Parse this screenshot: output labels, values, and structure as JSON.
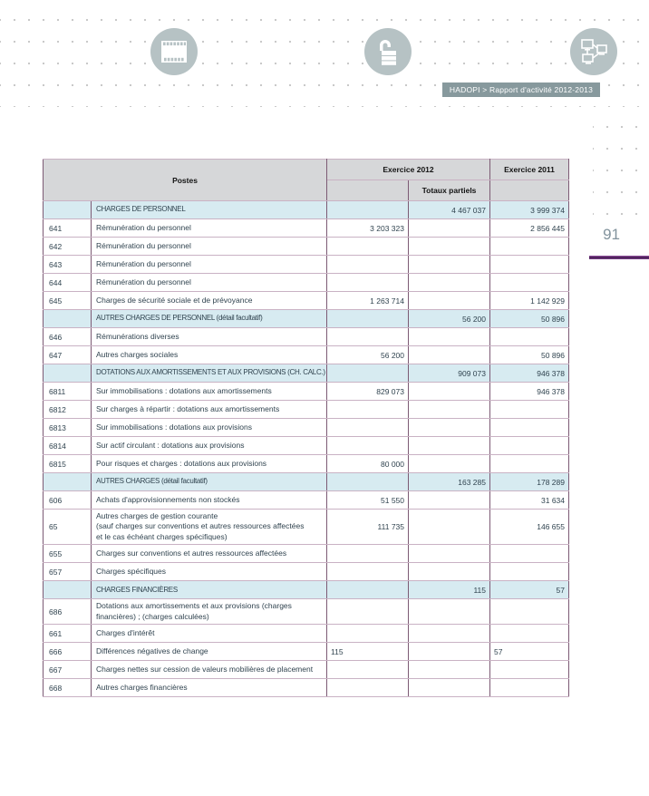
{
  "page": {
    "number": "91",
    "breadcrumb": "HADOPI > Rapport d'activité 2012-2013"
  },
  "icons": [
    "film-icon",
    "unlock-icon",
    "network-icon"
  ],
  "colors": {
    "accent_purple_rule": "#5a2366",
    "section_row_blue": "#d7ebf1",
    "header_gray": "#d6d7d9",
    "icon_circle_gray": "#b6c2c4",
    "breadcrumb_bg": "#87999d",
    "table_border_vertical": "#7c5a74",
    "table_border_horizontal": "#c9b2c4",
    "body_text": "#30434f",
    "page_number_gray": "#82939d"
  },
  "table": {
    "headers": {
      "postes": "Postes",
      "exercice2012": "Exercice 2012",
      "totaux_partiels": "Totaux partiels",
      "exercice2011": "Exercice 2011"
    },
    "rows": [
      {
        "section": true,
        "code": "",
        "label": "CHARGES DE PERSONNEL",
        "v2012": "",
        "totaux": "4 467 037",
        "v2011": "3 999 374"
      },
      {
        "section": false,
        "code": "641",
        "label": "Rémunération du personnel",
        "v2012": "3 203 323",
        "totaux": "",
        "v2011": "2 856 445"
      },
      {
        "section": false,
        "code": "642",
        "label": "Rémunération du personnel",
        "v2012": "",
        "totaux": "",
        "v2011": ""
      },
      {
        "section": false,
        "code": "643",
        "label": "Rémunération du personnel",
        "v2012": "",
        "totaux": "",
        "v2011": ""
      },
      {
        "section": false,
        "code": "644",
        "label": "Rémunération du personnel",
        "v2012": "",
        "totaux": "",
        "v2011": ""
      },
      {
        "section": false,
        "code": "645",
        "label": "Charges de sécurité sociale et de prévoyance",
        "v2012": "1 263 714",
        "totaux": "",
        "v2011": "1 142 929"
      },
      {
        "section": true,
        "code": "",
        "label": "AUTRES CHARGES DE PERSONNEL (détail facultatif)",
        "v2012": "",
        "totaux": "56 200",
        "v2011": "50 896"
      },
      {
        "section": false,
        "code": "646",
        "label": "Rémunérations diverses",
        "v2012": "",
        "totaux": "",
        "v2011": ""
      },
      {
        "section": false,
        "code": "647",
        "label": "Autres charges sociales",
        "v2012": "56 200",
        "totaux": "",
        "v2011": "50 896"
      },
      {
        "section": true,
        "code": "",
        "label": "DOTATIONS AUX AMORTISSEMENTS ET AUX PROVISIONS (CH. CALC.)",
        "v2012": "",
        "totaux": "909 073",
        "v2011": "946 378"
      },
      {
        "section": false,
        "code": "6811",
        "label": "Sur immobilisations : dotations aux amortissements",
        "v2012": "829 073",
        "totaux": "",
        "v2011": "946 378"
      },
      {
        "section": false,
        "code": "6812",
        "label": "Sur charges à répartir : dotations aux amortissements",
        "v2012": "",
        "totaux": "",
        "v2011": ""
      },
      {
        "section": false,
        "code": "6813",
        "label": "Sur immobilisations : dotations aux provisions",
        "v2012": "",
        "totaux": "",
        "v2011": ""
      },
      {
        "section": false,
        "code": "6814",
        "label": "Sur actif circulant : dotations aux provisions",
        "v2012": "",
        "totaux": "",
        "v2011": ""
      },
      {
        "section": false,
        "code": "6815",
        "label": "Pour risques et charges : dotations aux provisions",
        "v2012": "80 000",
        "totaux": "",
        "v2011": ""
      },
      {
        "section": true,
        "code": "",
        "label": "AUTRES CHARGES (détail facultatif)",
        "v2012": "",
        "totaux": "163 285",
        "v2011": "178 289"
      },
      {
        "section": false,
        "code": "606",
        "label": "Achats d'approvisionnements non stockés",
        "v2012": "51 550",
        "totaux": "",
        "v2011": "31 634"
      },
      {
        "section": false,
        "code": "65",
        "label": "Autres charges de gestion courante\n(sauf charges sur conventions et autres ressources affectées\net le cas échéant charges spécifiques)",
        "v2012": "111 735",
        "totaux": "",
        "v2011": "146 655"
      },
      {
        "section": false,
        "code": "655",
        "label": "Charges sur conventions et autres ressources affectées",
        "v2012": "",
        "totaux": "",
        "v2011": ""
      },
      {
        "section": false,
        "code": "657",
        "label": "Charges spécifiques",
        "v2012": "",
        "totaux": "",
        "v2011": ""
      },
      {
        "section": true,
        "code": "",
        "label": "CHARGES FINANCIÈRES",
        "v2012": "",
        "totaux": "115",
        "v2011": "57"
      },
      {
        "section": false,
        "code": "686",
        "label": "Dotations aux amortissements et aux provisions (charges\nfinancières) ; (charges calculées)",
        "v2012": "",
        "totaux": "",
        "v2011": ""
      },
      {
        "section": false,
        "code": "661",
        "label": "Charges d'intérêt",
        "v2012": "",
        "totaux": "",
        "v2011": ""
      },
      {
        "section": false,
        "code": "666",
        "label": "Différences négatives de change",
        "v2012": "115",
        "totaux": "",
        "v2011": "57",
        "align": "left"
      },
      {
        "section": false,
        "code": "667",
        "label": "Charges nettes sur cession de valeurs mobilières de placement",
        "v2012": "",
        "totaux": "",
        "v2011": ""
      },
      {
        "section": false,
        "code": "668",
        "label": "Autres charges financières",
        "v2012": "",
        "totaux": "",
        "v2011": ""
      }
    ]
  }
}
